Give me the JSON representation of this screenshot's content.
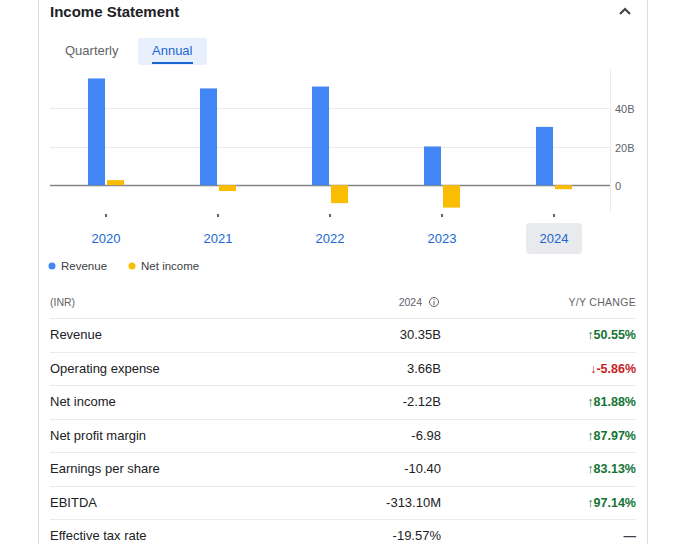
{
  "header": {
    "title": "Income Statement"
  },
  "tabs": {
    "items": [
      "Quarterly",
      "Annual"
    ],
    "selected": "Annual"
  },
  "chart_data": {
    "type": "bar",
    "categories": [
      "2020",
      "2021",
      "2022",
      "2023",
      "2024"
    ],
    "series": [
      {
        "name": "Revenue",
        "color": "#4285f4",
        "values": [
          55.6,
          50.4,
          51.4,
          20.16,
          30.35
        ]
      },
      {
        "name": "Net income",
        "color": "#fbbc04",
        "values": [
          2.6,
          -3.1,
          -9.4,
          -11.7,
          -2.12
        ]
      }
    ],
    "ylim": [
      -14,
      60
    ],
    "yticks": [
      0,
      {
        "value": 20,
        "label": "20B"
      },
      {
        "value": 40,
        "label": "40B"
      }
    ],
    "grid": true,
    "legend": "bottom-left"
  },
  "table": {
    "header": [
      "(INR)",
      "2024",
      "Y/Y CHANGE"
    ],
    "rows": [
      [
        "Revenue",
        "30.35B",
        "↑50.55%"
      ],
      [
        "Operating expense",
        "3.66B",
        "↓-5.86%"
      ],
      [
        "Net income",
        "-2.12B",
        "↑81.88%"
      ],
      [
        "Net profit margin",
        "-6.98",
        "↑87.97%"
      ],
      [
        "Earnings per share",
        "-10.40",
        "↑83.13%"
      ],
      [
        "EBITDA",
        "-313.10M",
        "↑97.14%"
      ],
      [
        "Effective tax rate",
        "-19.57%",
        "—"
      ]
    ]
  }
}
